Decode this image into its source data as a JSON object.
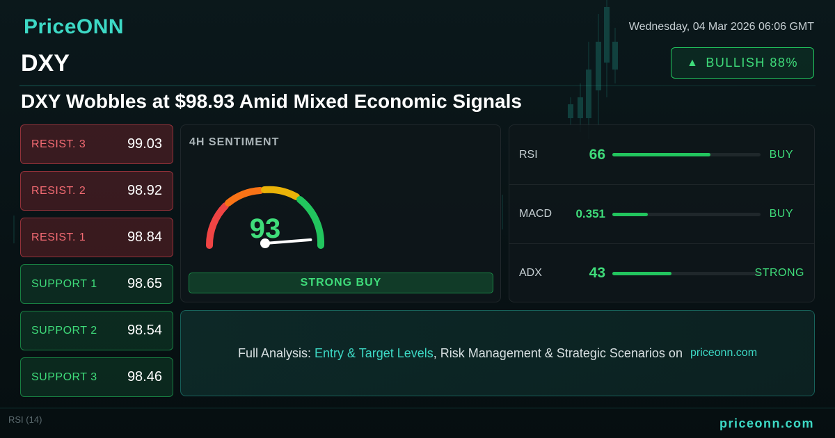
{
  "brand": {
    "logo": "PriceONN",
    "footer_url": "priceonn.com"
  },
  "header": {
    "datetime": "Wednesday, 04 Mar 2026 06:06 GMT",
    "symbol": "DXY",
    "badge": {
      "icon": "triangle-up-icon",
      "label": "BULLISH 88%"
    },
    "headline": "DXY Wobbles at $98.93 Amid Mixed Economic Signals"
  },
  "levels": [
    {
      "label": "RESIST. 3",
      "value": "99.03",
      "kind": "resistance"
    },
    {
      "label": "RESIST. 2",
      "value": "98.92",
      "kind": "resistance"
    },
    {
      "label": "RESIST. 1",
      "value": "98.84",
      "kind": "resistance"
    },
    {
      "label": "SUPPORT 1",
      "value": "98.65",
      "kind": "support"
    },
    {
      "label": "SUPPORT 2",
      "value": "98.54",
      "kind": "support"
    },
    {
      "label": "SUPPORT 3",
      "value": "98.46",
      "kind": "support"
    }
  ],
  "sentiment": {
    "title": "4H SENTIMENT",
    "score": "93",
    "score_fraction": 0.93,
    "verdict": "STRONG BUY"
  },
  "indicators": [
    {
      "name": "RSI",
      "value": "66",
      "bar_fraction": 0.66,
      "signal": "BUY"
    },
    {
      "name": "MACD",
      "value": "0.351",
      "bar_fraction": 0.24,
      "signal": "BUY"
    },
    {
      "name": "ADX",
      "value": "43",
      "bar_fraction": 0.4,
      "signal": "STRONG"
    }
  ],
  "cta": {
    "prefix": "Full Analysis: ",
    "highlight": "Entry & Target Levels",
    "middle": ", Risk Management & Strategic Scenarios on ",
    "site": "priceonn.com"
  },
  "background": {
    "indicator_label": "RSI (14)"
  },
  "colors": {
    "accent_teal": "#3dd9c5",
    "bullish_green": "#22c55e",
    "resistance_red": "#f46b73",
    "background": "#0a1518"
  }
}
